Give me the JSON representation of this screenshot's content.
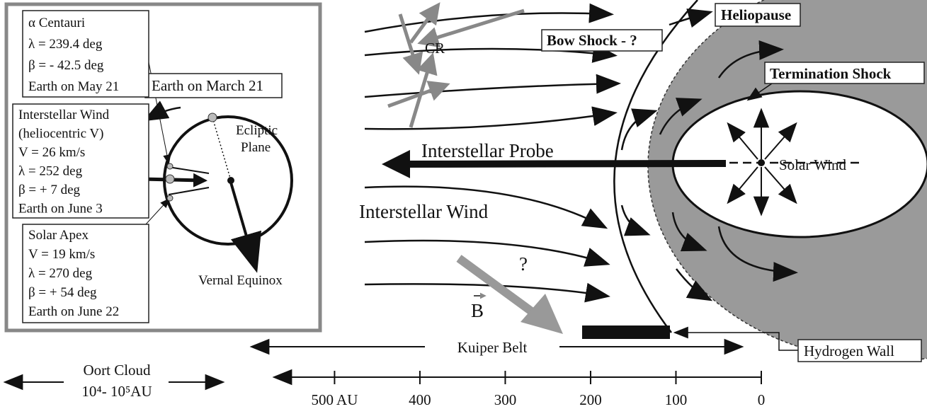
{
  "inset": {
    "alpha_centauri": [
      "α Centauri",
      "λ = 239.4 deg",
      "β = - 42.5 deg",
      "Earth on May 21"
    ],
    "interstellar_wind": [
      "Interstellar Wind",
      "(heliocentric V)",
      "V = 26 km/s",
      "λ = 252 deg",
      "β = + 7 deg",
      "Earth on June 3"
    ],
    "solar_apex": [
      "Solar Apex",
      "V = 19 km/s",
      "λ = 270 deg",
      "β = + 54 deg",
      "Earth on June 22"
    ],
    "earth_march": "Earth on March 21",
    "ecliptic": [
      "Ecliptic",
      "Plane"
    ],
    "vernal_equinox": "Vernal Equinox"
  },
  "labels": {
    "cr": "CR",
    "bow_shock": "Bow Shock - ?",
    "heliopause": "Heliopause",
    "termination_shock": "Termination Shock",
    "solar_wind": "Solar Wind",
    "interstellar_probe": "Interstellar Probe",
    "interstellar_wind": "Interstellar Wind",
    "question": "?",
    "b": "B",
    "kuiper_belt": "Kuiper Belt",
    "hydrogen_wall": "Hydrogen Wall",
    "oort_cloud": "Oort Cloud",
    "oort_range": "10⁴- 10⁵AU"
  },
  "scale": {
    "xlim": [
      580,
      0
    ],
    "ticks": [
      {
        "value": 500,
        "label": "500 AU"
      },
      400,
      300,
      200,
      100,
      0
    ]
  }
}
